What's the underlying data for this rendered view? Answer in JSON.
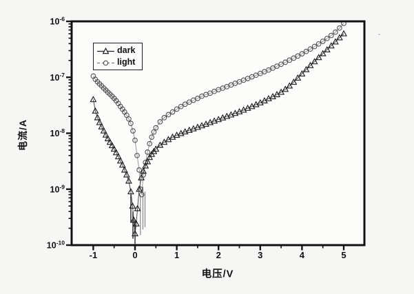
{
  "figure": {
    "background": "#f6f6f4",
    "ink": "#161616",
    "plot_fill": "#fcfcfb"
  },
  "chart_data": {
    "type": "scatter",
    "title": "",
    "xlabel": "电压/V",
    "ylabel": "电流/A",
    "x_scale": "linear",
    "y_scale": "log",
    "xlim": [
      -1.5,
      5.5
    ],
    "ylim": [
      1e-10,
      1e-06
    ],
    "grid": false,
    "legend_position": "upper-left-inside",
    "x_ticks": [
      {
        "value": -1,
        "label": "-1"
      },
      {
        "value": 0,
        "label": "0"
      },
      {
        "value": 1,
        "label": "1"
      },
      {
        "value": 2,
        "label": "2"
      },
      {
        "value": 3,
        "label": "3"
      },
      {
        "value": 4,
        "label": "4"
      },
      {
        "value": 5,
        "label": "5"
      }
    ],
    "x_minor_ticks": [
      -0.5,
      0.5,
      1.5,
      2.5,
      3.5,
      4.5
    ],
    "y_ticks": [
      {
        "value": -6,
        "base": "10",
        "exponent": "-6"
      },
      {
        "value": -7,
        "base": "10",
        "exponent": "-7"
      },
      {
        "value": -8,
        "base": "10",
        "exponent": "-8"
      },
      {
        "value": -9,
        "base": "10",
        "exponent": "-9"
      },
      {
        "value": -10,
        "base": "10",
        "exponent": "-10"
      }
    ],
    "series": [
      {
        "name": "light",
        "marker": "circle-open",
        "marker_color": "#4f4f4f",
        "line_color": "#8d8d8d",
        "points": [
          [
            -1.0,
            1.05e-07
          ],
          [
            -0.95,
            9.2e-08
          ],
          [
            -0.9,
            8.3e-08
          ],
          [
            -0.85,
            7.6e-08
          ],
          [
            -0.8,
            7e-08
          ],
          [
            -0.75,
            6.4e-08
          ],
          [
            -0.7,
            5.9e-08
          ],
          [
            -0.65,
            5.4e-08
          ],
          [
            -0.6,
            5e-08
          ],
          [
            -0.55,
            4.6e-08
          ],
          [
            -0.5,
            4.2e-08
          ],
          [
            -0.45,
            3.8e-08
          ],
          [
            -0.4,
            3.4e-08
          ],
          [
            -0.35,
            3e-08
          ],
          [
            -0.3,
            2.7e-08
          ],
          [
            -0.25,
            2.4e-08
          ],
          [
            -0.2,
            2.1e-08
          ],
          [
            -0.15,
            1.8e-08
          ],
          [
            -0.1,
            1.5e-08
          ],
          [
            -0.05,
            1.1e-08
          ],
          [
            0.0,
            7.5e-09
          ],
          [
            0.05,
            4e-09
          ],
          [
            0.1,
            2.2e-09
          ],
          [
            0.13,
            1e-09
          ],
          [
            0.16,
            8e-10
          ],
          [
            0.2,
            1.8e-09
          ],
          [
            0.25,
            3e-09
          ],
          [
            0.3,
            4.6e-09
          ],
          [
            0.35,
            6.5e-09
          ],
          [
            0.4,
            8.5e-09
          ],
          [
            0.45,
            1.05e-08
          ],
          [
            0.5,
            1.25e-08
          ],
          [
            0.6,
            1.6e-08
          ],
          [
            0.7,
            1.9e-08
          ],
          [
            0.8,
            2.15e-08
          ],
          [
            0.9,
            2.4e-08
          ],
          [
            1.0,
            2.7e-08
          ],
          [
            1.1,
            3e-08
          ],
          [
            1.2,
            3.3e-08
          ],
          [
            1.3,
            3.6e-08
          ],
          [
            1.4,
            3.9e-08
          ],
          [
            1.5,
            4.2e-08
          ],
          [
            1.6,
            4.6e-08
          ],
          [
            1.7,
            4.9e-08
          ],
          [
            1.8,
            5.2e-08
          ],
          [
            1.9,
            5.6e-08
          ],
          [
            2.0,
            6e-08
          ],
          [
            2.1,
            6.4e-08
          ],
          [
            2.2,
            6.8e-08
          ],
          [
            2.3,
            7.3e-08
          ],
          [
            2.4,
            7.8e-08
          ],
          [
            2.5,
            8.3e-08
          ],
          [
            2.6,
            8.9e-08
          ],
          [
            2.7,
            9.5e-08
          ],
          [
            2.8,
            1.02e-07
          ],
          [
            2.9,
            1.09e-07
          ],
          [
            3.0,
            1.17e-07
          ],
          [
            3.1,
            1.26e-07
          ],
          [
            3.2,
            1.35e-07
          ],
          [
            3.3,
            1.46e-07
          ],
          [
            3.4,
            1.58e-07
          ],
          [
            3.5,
            1.71e-07
          ],
          [
            3.6,
            1.86e-07
          ],
          [
            3.7,
            2.02e-07
          ],
          [
            3.8,
            2.2e-07
          ],
          [
            3.9,
            2.4e-07
          ],
          [
            4.0,
            2.63e-07
          ],
          [
            4.1,
            2.9e-07
          ],
          [
            4.2,
            3.2e-07
          ],
          [
            4.3,
            3.55e-07
          ],
          [
            4.4,
            3.95e-07
          ],
          [
            4.5,
            4.4e-07
          ],
          [
            4.6,
            4.95e-07
          ],
          [
            4.7,
            5.6e-07
          ],
          [
            4.8,
            6.4e-07
          ],
          [
            4.9,
            7.6e-07
          ],
          [
            5.0,
            9.2e-07
          ]
        ]
      },
      {
        "name": "dark",
        "marker": "triangle-open",
        "marker_color": "#1f1f1f",
        "line_color": "#3c3c3c",
        "points": [
          [
            -1.0,
            4e-08
          ],
          [
            -0.95,
            2.5e-08
          ],
          [
            -0.9,
            1.9e-08
          ],
          [
            -0.85,
            1.55e-08
          ],
          [
            -0.8,
            1.3e-08
          ],
          [
            -0.75,
            1.1e-08
          ],
          [
            -0.7,
            9.3e-09
          ],
          [
            -0.65,
            8e-09
          ],
          [
            -0.6,
            6.9e-09
          ],
          [
            -0.55,
            6e-09
          ],
          [
            -0.5,
            5.2e-09
          ],
          [
            -0.45,
            4.5e-09
          ],
          [
            -0.4,
            3.8e-09
          ],
          [
            -0.35,
            3.2e-09
          ],
          [
            -0.3,
            2.7e-09
          ],
          [
            -0.25,
            2.2e-09
          ],
          [
            -0.2,
            1.8e-09
          ],
          [
            -0.15,
            1.4e-09
          ],
          [
            -0.1,
            9e-10
          ],
          [
            -0.06,
            5e-10
          ],
          [
            -0.03,
            2.8e-10
          ],
          [
            0.0,
            1.6e-10
          ],
          [
            0.03,
            2.4e-10
          ],
          [
            0.06,
            4.5e-10
          ],
          [
            0.1,
            1e-09
          ],
          [
            0.15,
            1.6e-09
          ],
          [
            0.2,
            2.1e-09
          ],
          [
            0.25,
            2.6e-09
          ],
          [
            0.3,
            3.1e-09
          ],
          [
            0.35,
            3.7e-09
          ],
          [
            0.4,
            4.2e-09
          ],
          [
            0.45,
            4.7e-09
          ],
          [
            0.5,
            5.2e-09
          ],
          [
            0.6,
            6.1e-09
          ],
          [
            0.7,
            6.9e-09
          ],
          [
            0.8,
            7.7e-09
          ],
          [
            0.9,
            8.5e-09
          ],
          [
            1.0,
            9.2e-09
          ],
          [
            1.1,
            9.9e-09
          ],
          [
            1.2,
            1.06e-08
          ],
          [
            1.3,
            1.13e-08
          ],
          [
            1.4,
            1.2e-08
          ],
          [
            1.5,
            1.28e-08
          ],
          [
            1.6,
            1.36e-08
          ],
          [
            1.7,
            1.45e-08
          ],
          [
            1.8,
            1.55e-08
          ],
          [
            1.9,
            1.65e-08
          ],
          [
            2.0,
            1.76e-08
          ],
          [
            2.1,
            1.88e-08
          ],
          [
            2.2,
            2e-08
          ],
          [
            2.3,
            2.13e-08
          ],
          [
            2.4,
            2.27e-08
          ],
          [
            2.5,
            2.42e-08
          ],
          [
            2.6,
            2.6e-08
          ],
          [
            2.7,
            2.8e-08
          ],
          [
            2.8,
            3e-08
          ],
          [
            2.9,
            3.25e-08
          ],
          [
            3.0,
            3.5e-08
          ],
          [
            3.1,
            3.8e-08
          ],
          [
            3.2,
            4.15e-08
          ],
          [
            3.3,
            4.5e-08
          ],
          [
            3.4,
            4.9e-08
          ],
          [
            3.5,
            5.4e-08
          ],
          [
            3.6,
            6.1e-08
          ],
          [
            3.7,
            7e-08
          ],
          [
            3.8,
            8.2e-08
          ],
          [
            3.9,
            9.7e-08
          ],
          [
            4.0,
            1.15e-07
          ],
          [
            4.1,
            1.37e-07
          ],
          [
            4.2,
            1.62e-07
          ],
          [
            4.3,
            1.9e-07
          ],
          [
            4.4,
            2.25e-07
          ],
          [
            4.5,
            2.65e-07
          ],
          [
            4.6,
            3.1e-07
          ],
          [
            4.7,
            3.65e-07
          ],
          [
            4.8,
            4.3e-07
          ],
          [
            4.9,
            5.1e-07
          ],
          [
            5.0,
            6e-07
          ]
        ]
      }
    ],
    "noise_lines": [
      {
        "series": "dark",
        "v": -0.1,
        "top": 8e-10,
        "bottom": 2.5e-10
      },
      {
        "series": "dark",
        "v": -0.05,
        "top": 4e-10,
        "bottom": 1.3e-10
      },
      {
        "series": "dark",
        "v": 0.0,
        "top": 2.8e-10,
        "bottom": 1.05e-10
      },
      {
        "series": "light",
        "v": 0.13,
        "top": 8e-10,
        "bottom": 1.5e-10
      },
      {
        "series": "light",
        "v": 0.19,
        "top": 1.1e-09,
        "bottom": 1.9e-10
      },
      {
        "series": "light",
        "v": 0.24,
        "top": 9e-10,
        "bottom": 2.1e-10
      }
    ]
  },
  "legend": {
    "entries": [
      {
        "label": "dark"
      },
      {
        "label": "light"
      }
    ]
  }
}
